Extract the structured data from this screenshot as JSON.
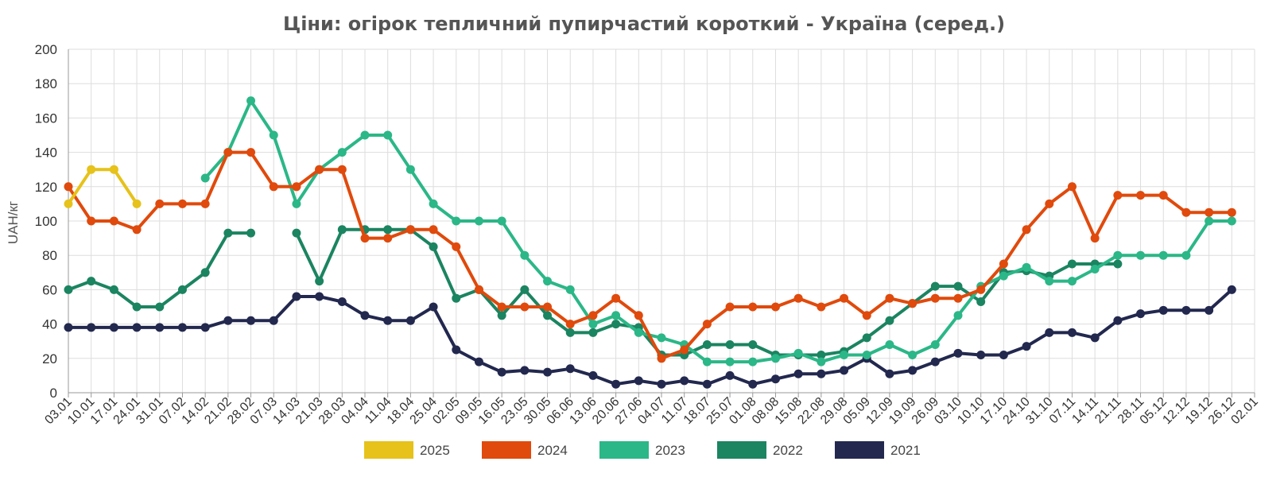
{
  "chart_data": {
    "type": "line",
    "title": "Ціни: огірок тепличний пупирчастий короткий - Україна (серед.)",
    "xlabel": "",
    "ylabel": "UAH/кг",
    "ylim": [
      0,
      200
    ],
    "yticks": [
      "0",
      "20",
      "40",
      "60",
      "80",
      "100",
      "120",
      "140",
      "160",
      "180",
      "200"
    ],
    "grid": true,
    "legend_position": "bottom",
    "categories": [
      "03.01",
      "10.01",
      "17.01",
      "24.01",
      "31.01",
      "07.02",
      "14.02",
      "21.02",
      "28.02",
      "07.03",
      "14.03",
      "21.03",
      "28.03",
      "04.04",
      "11.04",
      "18.04",
      "25.04",
      "02.05",
      "09.05",
      "16.05",
      "23.05",
      "30.05",
      "06.06",
      "13.06",
      "20.06",
      "27.06",
      "04.07",
      "11.07",
      "18.07",
      "25.07",
      "01.08",
      "08.08",
      "15.08",
      "22.08",
      "29.08",
      "05.09",
      "12.09",
      "19.09",
      "26.09",
      "03.10",
      "10.10",
      "17.10",
      "24.10",
      "31.10",
      "07.11",
      "14.11",
      "21.11",
      "28.11",
      "05.12",
      "12.12",
      "19.12",
      "26.12",
      "02.01"
    ],
    "series": [
      {
        "name": "2025",
        "color": "#e6c21a",
        "values": [
          110,
          130,
          130,
          110,
          null,
          null,
          null,
          null,
          null,
          null,
          null,
          null,
          null,
          null,
          null,
          null,
          null,
          null,
          null,
          null,
          null,
          null,
          null,
          null,
          null,
          null,
          null,
          null,
          null,
          null,
          null,
          null,
          null,
          null,
          null,
          null,
          null,
          null,
          null,
          null,
          null,
          null,
          null,
          null,
          null,
          null,
          null,
          null,
          null,
          null,
          null,
          null,
          null
        ]
      },
      {
        "name": "2024",
        "color": "#e04a0c",
        "values": [
          120,
          100,
          100,
          95,
          110,
          110,
          110,
          140,
          140,
          120,
          120,
          130,
          130,
          90,
          90,
          95,
          95,
          85,
          60,
          50,
          50,
          50,
          40,
          45,
          55,
          45,
          20,
          25,
          40,
          50,
          50,
          50,
          55,
          50,
          55,
          45,
          55,
          52,
          55,
          55,
          60,
          75,
          95,
          110,
          120,
          90,
          115,
          115,
          115,
          105,
          105,
          105,
          null
        ]
      },
      {
        "name": "2023",
        "color": "#2bb787",
        "values": [
          null,
          null,
          null,
          null,
          null,
          null,
          125,
          140,
          170,
          150,
          110,
          130,
          140,
          150,
          150,
          130,
          110,
          100,
          100,
          100,
          80,
          65,
          60,
          40,
          45,
          35,
          32,
          28,
          18,
          18,
          18,
          20,
          23,
          18,
          22,
          22,
          28,
          22,
          28,
          45,
          62,
          68,
          73,
          65,
          65,
          72,
          80,
          80,
          80,
          80,
          100,
          100,
          null
        ]
      },
      {
        "name": "2022",
        "color": "#1b8461",
        "values": [
          60,
          65,
          60,
          50,
          50,
          60,
          70,
          93,
          93,
          null,
          93,
          65,
          95,
          95,
          95,
          95,
          85,
          55,
          60,
          45,
          60,
          45,
          35,
          35,
          40,
          38,
          22,
          22,
          28,
          28,
          28,
          22,
          22,
          22,
          24,
          32,
          42,
          52,
          62,
          62,
          53,
          70,
          71,
          68,
          75,
          75,
          75,
          null,
          null,
          null,
          null,
          null,
          null
        ]
      },
      {
        "name": "2021",
        "color": "#22284e",
        "values": [
          38,
          38,
          38,
          38,
          38,
          38,
          38,
          42,
          42,
          42,
          56,
          56,
          53,
          45,
          42,
          42,
          50,
          25,
          18,
          12,
          13,
          12,
          14,
          10,
          5,
          7,
          5,
          7,
          5,
          10,
          5,
          8,
          11,
          11,
          13,
          20,
          11,
          13,
          18,
          23,
          22,
          22,
          27,
          35,
          35,
          32,
          42,
          46,
          48,
          48,
          48,
          60,
          null
        ]
      }
    ]
  }
}
